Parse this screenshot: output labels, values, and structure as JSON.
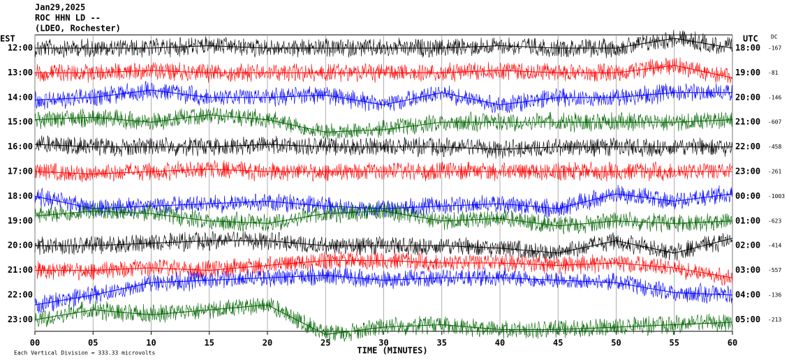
{
  "chart_data": {
    "type": "helicorder",
    "title_lines": [
      "Jan29,2025",
      "ROC HHN LD --",
      "(LDEO, Rochester)"
    ],
    "left_axis_label": "EST",
    "right_axis_label": "UTC",
    "dc_label": "DC",
    "x_label": "TIME (MINUTES)",
    "footnote": "Each Vertical Division =  333.33 microvolts",
    "x": [
      0,
      5,
      10,
      15,
      20,
      25,
      30,
      35,
      40,
      45,
      50,
      55,
      60
    ],
    "xlim": [
      0,
      60
    ],
    "xticks": [
      {
        "value": 0,
        "label": "00"
      },
      {
        "value": 5,
        "label": "05"
      },
      10,
      15,
      20,
      25,
      30,
      35,
      40,
      45,
      50,
      55,
      60
    ],
    "grid": true,
    "series": [
      {
        "name": "12:00",
        "utc": "18:00",
        "dc": -167,
        "color": "#000000",
        "values": [
          0,
          0,
          0,
          0.1,
          0,
          0,
          0,
          0,
          0.1,
          0,
          0,
          0.4,
          0
        ]
      },
      {
        "name": "13:00",
        "utc": "19:00",
        "dc": -81,
        "color": "#ff0000",
        "values": [
          0,
          0,
          0.1,
          0,
          0,
          0,
          0,
          0,
          0.1,
          0,
          0,
          0.3,
          -0.2
        ]
      },
      {
        "name": "14:00",
        "utc": "20:00",
        "dc": -146,
        "color": "#0000ff",
        "values": [
          -0.1,
          0,
          0.3,
          0,
          0,
          0.1,
          -0.3,
          0.2,
          -0.3,
          0,
          0,
          0.2,
          0.2
        ]
      },
      {
        "name": "15:00",
        "utc": "21:00",
        "dc": -607,
        "color": "#006400",
        "values": [
          0.1,
          0.2,
          0,
          0.3,
          0.1,
          -0.4,
          -0.3,
          0,
          0,
          0,
          0,
          0,
          0.1
        ]
      },
      {
        "name": "16:00",
        "utc": "22:00",
        "dc": -458,
        "color": "#000000",
        "values": [
          0.1,
          0,
          0,
          0,
          0.1,
          0,
          0,
          0,
          -0.1,
          0,
          0,
          0,
          0
        ]
      },
      {
        "name": "17:00",
        "utc": "23:00",
        "dc": -261,
        "color": "#ff0000",
        "values": [
          0,
          -0.1,
          0,
          0.1,
          0,
          0,
          0,
          0,
          0,
          0,
          0,
          0,
          0
        ]
      },
      {
        "name": "18:00",
        "utc": "00:00",
        "dc": -1003,
        "color": "#0000ff",
        "values": [
          0,
          -0.5,
          -0.4,
          -0.3,
          -0.2,
          -0.4,
          -0.5,
          -0.4,
          -0.3,
          -0.5,
          0.1,
          -0.2,
          0.1
        ]
      },
      {
        "name": "19:00",
        "utc": "01:00",
        "dc": -623,
        "color": "#006400",
        "values": [
          0.2,
          0.4,
          0.3,
          0,
          -0.1,
          0.3,
          0.4,
          0,
          0.1,
          -0.2,
          0,
          -0.1,
          0
        ]
      },
      {
        "name": "20:00",
        "utc": "02:00",
        "dc": -414,
        "color": "#000000",
        "values": [
          0,
          0,
          0.1,
          0.2,
          0.2,
          0,
          0,
          0,
          -0.1,
          -0.3,
          0.2,
          -0.3,
          0.3
        ]
      },
      {
        "name": "21:00",
        "utc": "03:00",
        "dc": -557,
        "color": "#ff0000",
        "values": [
          0,
          0,
          0.1,
          0,
          0.2,
          0.4,
          0.4,
          0.3,
          0.3,
          0.2,
          0.3,
          0.1,
          -0.3
        ]
      },
      {
        "name": "22:00",
        "utc": "04:00",
        "dc": -136,
        "color": "#0000ff",
        "values": [
          -0.4,
          0,
          0.5,
          0.6,
          0.7,
          0.8,
          0.6,
          0.7,
          0.7,
          0.6,
          0.5,
          0.1,
          0
        ]
      },
      {
        "name": "23:00",
        "utc": "05:00",
        "dc": -213,
        "color": "#006400",
        "values": [
          0,
          0.4,
          0.2,
          0.4,
          0.6,
          -0.6,
          -0.3,
          -0.2,
          -0.4,
          -0.4,
          -0.3,
          -0.2,
          -0.1
        ]
      }
    ]
  }
}
